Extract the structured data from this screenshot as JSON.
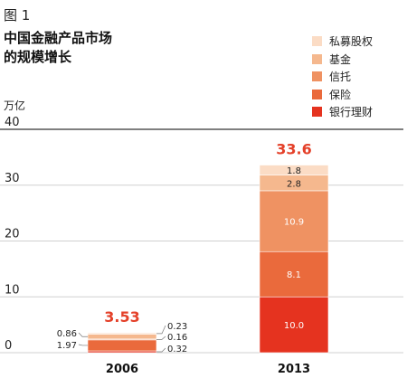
{
  "figure_label": "图 1",
  "title_line1": "中国金融产品市场",
  "title_line2": "的规模增长",
  "chart_data": {
    "type": "bar",
    "stacked": true,
    "unit": "万亿",
    "categories": [
      "2006",
      "2013"
    ],
    "ylim": [
      0,
      40
    ],
    "yticks": [
      "0",
      "10",
      "20",
      "30",
      "40"
    ],
    "series": [
      {
        "name": "银行理财",
        "color": "#e5331f",
        "values": [
          0.32,
          10.0
        ],
        "labels": [
          "0.32",
          "10.0"
        ]
      },
      {
        "name": "保险",
        "color": "#ea6a3c",
        "values": [
          1.97,
          8.1
        ],
        "labels": [
          "1.97",
          "8.1"
        ]
      },
      {
        "name": "信托",
        "color": "#ef9262",
        "values": [
          0.16,
          10.9
        ],
        "labels": [
          "0.16",
          "10.9"
        ]
      },
      {
        "name": "基金",
        "color": "#f5b88e",
        "values": [
          0.86,
          2.8
        ],
        "labels": [
          "0.86",
          "2.8"
        ]
      },
      {
        "name": "私募股权",
        "color": "#fbdcc5",
        "values": [
          0.23,
          1.8
        ],
        "labels": [
          "0.23",
          "1.8"
        ]
      }
    ],
    "totals": [
      "3.53",
      "33.6"
    ],
    "grid": true
  }
}
